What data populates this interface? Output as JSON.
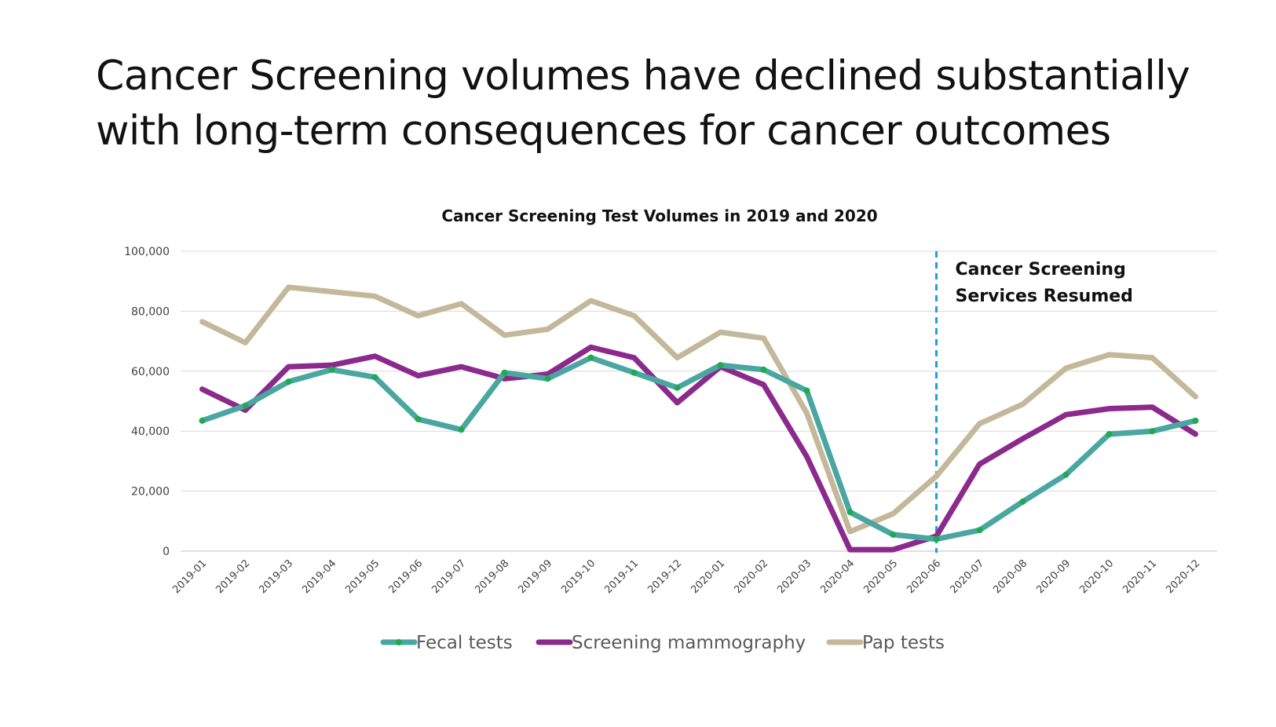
{
  "slide": {
    "title_line1": "Cancer Screening volumes have declined substantially",
    "title_line2": "with long-term consequences for cancer outcomes"
  },
  "chart_data": {
    "type": "line",
    "title": "Cancer Screening Test Volumes in 2019 and 2020",
    "xlabel": "",
    "ylabel": "",
    "ylim": [
      0,
      100000
    ],
    "yticks": [
      0,
      20000,
      40000,
      60000,
      80000,
      100000
    ],
    "ytick_labels": [
      "0",
      "20,000",
      "40,000",
      "60,000",
      "80,000",
      "100,000"
    ],
    "grid": true,
    "legend_position": "bottom",
    "categories": [
      "2019-01",
      "2019-02",
      "2019-03",
      "2019-04",
      "2019-05",
      "2019-06",
      "2019-07",
      "2019-08",
      "2019-09",
      "2019-10",
      "2019-11",
      "2019-12",
      "2020-01",
      "2020-02",
      "2020-03",
      "2020-04",
      "2020-05",
      "2020-06",
      "2020-07",
      "2020-08",
      "2020-09",
      "2020-10",
      "2020-11",
      "2020-12"
    ],
    "series": [
      {
        "name": "Fecal tests",
        "color": "#4aa6a0",
        "marker_color": "#1faa50",
        "values": [
          43500,
          48500,
          56500,
          60500,
          58000,
          44000,
          40500,
          59500,
          57500,
          64500,
          59500,
          54500,
          62000,
          60500,
          53500,
          13000,
          5500,
          4000,
          7000,
          16500,
          25500,
          39000,
          40000,
          43500
        ]
      },
      {
        "name": "Screening mammography",
        "color": "#8b2a8c",
        "values": [
          54000,
          47000,
          61500,
          62000,
          65000,
          58500,
          61500,
          57500,
          59000,
          68000,
          64500,
          49500,
          61500,
          55500,
          31500,
          500,
          500,
          5000,
          29000,
          37500,
          45500,
          47500,
          48000,
          39000
        ]
      },
      {
        "name": "Pap tests",
        "color": "#c4b89a",
        "values": [
          76500,
          69500,
          88000,
          86500,
          85000,
          78500,
          82500,
          72000,
          74000,
          83500,
          78500,
          64500,
          73000,
          71000,
          46000,
          6500,
          12500,
          25000,
          42500,
          49000,
          61000,
          65500,
          64500,
          51500
        ]
      }
    ],
    "annotations": [
      {
        "text_line1": "Cancer Screening",
        "text_line2": "Services Resumed",
        "at_category": "2020-06",
        "line_color": "#1ea0dc",
        "line_style": "dashed"
      }
    ]
  }
}
